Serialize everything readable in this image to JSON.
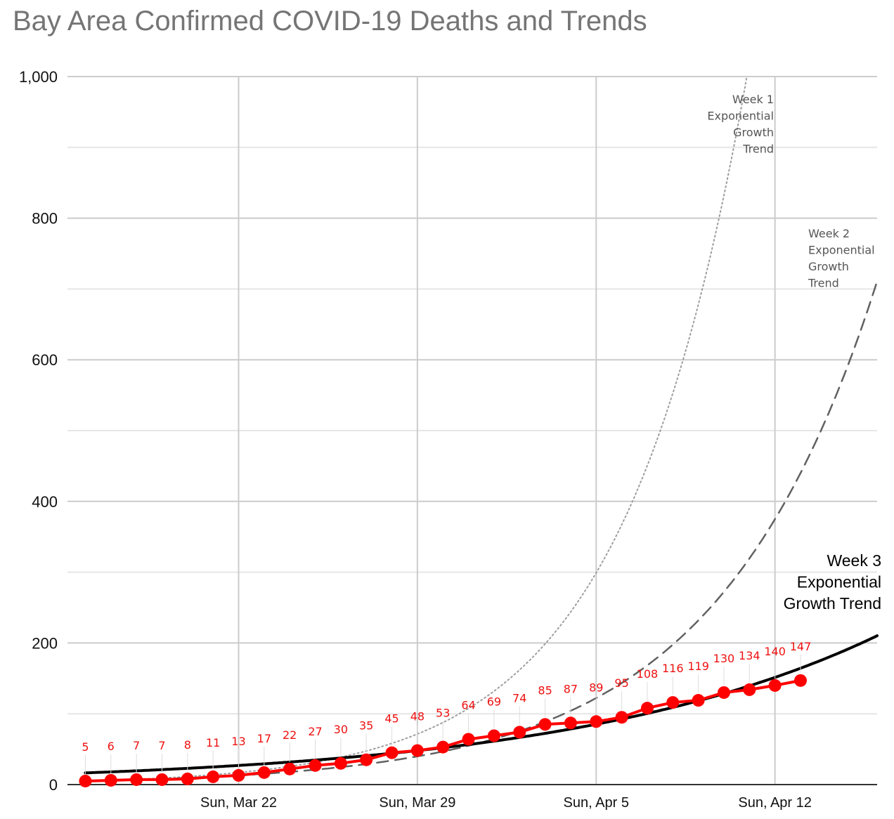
{
  "chart_data": {
    "type": "line",
    "title": "Bay Area Confirmed COVID-19 Deaths and Trends",
    "xlabel": "",
    "ylabel": "",
    "ylim": [
      0,
      1000
    ],
    "y_ticks": [
      "0",
      "200",
      "400",
      "600",
      "800",
      "1,000"
    ],
    "y_tick_values": [
      0,
      200,
      400,
      600,
      800,
      1000
    ],
    "x_range_days": [
      -0.7,
      31.0
    ],
    "x_ticks": [
      {
        "day": 6,
        "label": "Sun, Mar 22"
      },
      {
        "day": 13,
        "label": "Sun, Mar 29"
      },
      {
        "day": 20,
        "label": "Sun, Apr 5"
      },
      {
        "day": 27,
        "label": "Sun, Apr 12"
      }
    ],
    "grid": true,
    "series": [
      {
        "name": "Confirmed Deaths",
        "color": "#ff0000",
        "start_day": 0,
        "values": [
          5,
          6,
          7,
          7,
          8,
          11,
          13,
          17,
          22,
          27,
          30,
          35,
          45,
          48,
          53,
          64,
          69,
          74,
          85,
          87,
          89,
          95,
          108,
          116,
          119,
          130,
          134,
          140,
          147
        ],
        "labels": [
          "5",
          "6",
          "7",
          "7",
          "8",
          "11",
          "13",
          "17",
          "22",
          "27",
          "30",
          "35",
          "45",
          "48",
          "53",
          "64",
          "69",
          "74",
          "85",
          "87",
          "89",
          "95",
          "108",
          "116",
          "119",
          "130",
          "134",
          "140",
          "147"
        ]
      }
    ],
    "trends": [
      {
        "name": "Week 1 Exponential Growth Trend",
        "lines": [
          "Week 1",
          "Exponential",
          "Growth",
          "Trend"
        ],
        "style": "dotted",
        "color": "#9e9e9e",
        "start_day": 0,
        "end_day": 28.3,
        "base_value": 5,
        "daily_growth": 1.227
      },
      {
        "name": "Week 2 Exponential Growth Trend",
        "lines": [
          "Week 2",
          "Exponential",
          "Growth",
          "Trend"
        ],
        "style": "dashed",
        "color": "#616161",
        "start_day": 6,
        "end_day": 31.0,
        "base_value": 13,
        "daily_growth": 1.1736
      },
      {
        "name": "Week 3 Exponential Growth Trend",
        "lines": [
          "Week 3",
          "Exponential",
          "Growth Trend"
        ],
        "style": "solid",
        "color": "#000000",
        "start_day": 13,
        "end_day": 31.0,
        "base_value": 48,
        "daily_growth": 1.0855
      }
    ]
  }
}
